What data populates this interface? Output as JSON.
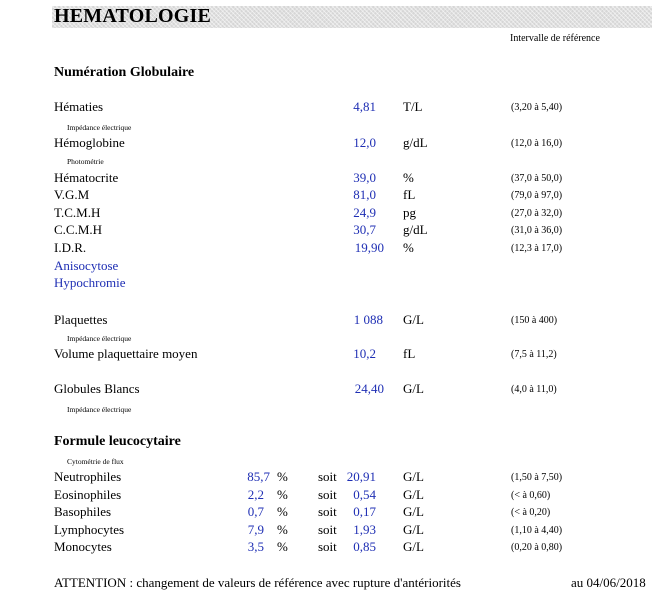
{
  "title": "HEMATOLOGIE",
  "reference_header": "Intervalle de référence",
  "sections": {
    "numeration": "Numération Globulaire",
    "formule": "Formule leucocytaire"
  },
  "rows": [
    {
      "name": "Hématies",
      "value": "4,81",
      "unit": "T/L",
      "ref": "(3,20 à 5,40)"
    },
    {
      "name": "Hémoglobine",
      "value": "12,0",
      "unit": "g/dL",
      "ref": "(12,0 à 16,0)"
    },
    {
      "name": "Hématocrite",
      "value": "39,0",
      "unit": "%",
      "ref": "(37,0 à 50,0)"
    },
    {
      "name": "V.G.M",
      "value": "81,0",
      "unit": "fL",
      "ref": "(79,0 à 97,0)"
    },
    {
      "name": "T.C.M.H",
      "value": "24,9",
      "unit": "pg",
      "ref": "(27,0 à 32,0)"
    },
    {
      "name": "C.C.M.H",
      "value": "30,7",
      "unit": "g/dL",
      "ref": "(31,0 à 36,0)"
    },
    {
      "name": "I.D.R.",
      "value": "19,90",
      "unit": "%",
      "ref": "(12,3 à 17,0)"
    },
    {
      "name": "Plaquettes",
      "value": "1 088",
      "unit": "G/L",
      "ref": "(150 à 400)"
    },
    {
      "name": "Volume plaquettaire moyen",
      "value": "10,2",
      "unit": "fL",
      "ref": "(7,5 à 11,2)"
    },
    {
      "name": "Globules Blancs",
      "value": "24,40",
      "unit": "G/L",
      "ref": "(4,0 à 11,0)"
    }
  ],
  "comments": [
    "Anisocytose",
    "Hypochromie"
  ],
  "methods": {
    "impedance": "Impédance électrique",
    "photometrie": "Photométrie",
    "cytometrie": "Cytométrie de flux"
  },
  "leuco": [
    {
      "name": "Neutrophiles",
      "pct": "85,7",
      "pct_unit": "%",
      "soit": "soit",
      "value": "20,91",
      "unit": "G/L",
      "ref": "(1,50 à 7,50)"
    },
    {
      "name": "Eosinophiles",
      "pct": "2,2",
      "pct_unit": "%",
      "soit": "soit",
      "value": "0,54",
      "unit": "G/L",
      "ref": "(< à 0,60)"
    },
    {
      "name": "Basophiles",
      "pct": "0,7",
      "pct_unit": "%",
      "soit": "soit",
      "value": "0,17",
      "unit": "G/L",
      "ref": "(< à 0,20)"
    },
    {
      "name": "Lymphocytes",
      "pct": "7,9",
      "pct_unit": "%",
      "soit": "soit",
      "value": "1,93",
      "unit": "G/L",
      "ref": "(1,10 à 4,40)"
    },
    {
      "name": "Monocytes",
      "pct": "3,5",
      "pct_unit": "%",
      "soit": "soit",
      "value": "0,85",
      "unit": "G/L",
      "ref": "(0,20 à 0,80)"
    }
  ],
  "footer": {
    "attention": "ATTENTION : changement de valeurs de référence avec rupture d'antériorités",
    "date": "au 04/06/2018"
  }
}
